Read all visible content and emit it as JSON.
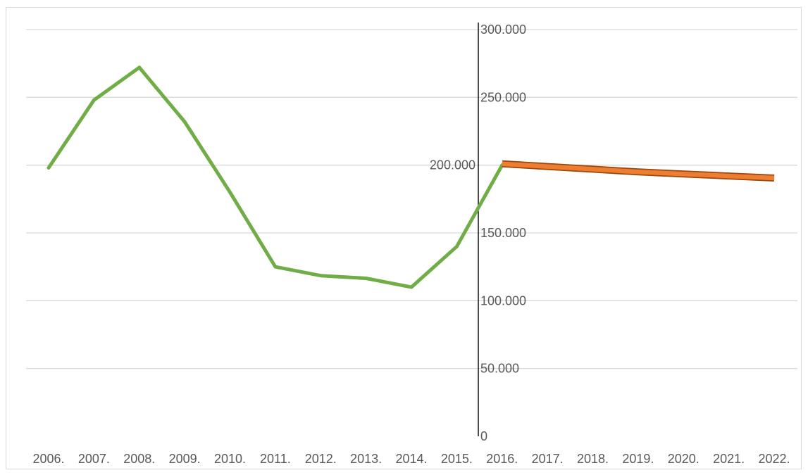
{
  "chart_data": {
    "type": "line",
    "categories": [
      "2006.",
      "2007.",
      "2008.",
      "2009.",
      "2010.",
      "2011.",
      "2012.",
      "2013.",
      "2014.",
      "2015.",
      "2016.",
      "2017.",
      "2018.",
      "2019.",
      "2020.",
      "2021.",
      "2022."
    ],
    "y_tick_labels": [
      "0",
      "50.000",
      "100.000",
      "150.000",
      "200.000",
      "250.000",
      "300.000"
    ],
    "y_ticks": [
      0,
      50000,
      100000,
      150000,
      200000,
      250000,
      300000
    ],
    "ylim": [
      0,
      300000
    ],
    "grid": true,
    "legend": "none",
    "series": [
      {
        "color": "#70ad47",
        "values": [
          198000,
          248000,
          272000,
          232000,
          180000,
          125000,
          118500,
          116500,
          110000,
          140000,
          200000,
          null,
          null,
          null,
          null,
          null,
          null
        ]
      },
      {
        "color": "#ed7d31",
        "outline": "#9e480e",
        "values": [
          null,
          null,
          null,
          null,
          null,
          null,
          null,
          null,
          null,
          null,
          201000,
          199000,
          197000,
          195000,
          193500,
          192000,
          190500
        ]
      }
    ]
  },
  "colors": {
    "gridline": "#d9d9d9",
    "axis_line": "#000000",
    "label_text": "#595959",
    "actual_line": "#70ad47",
    "forecast_fill": "#ed7d31",
    "forecast_outline": "#9e480e"
  }
}
